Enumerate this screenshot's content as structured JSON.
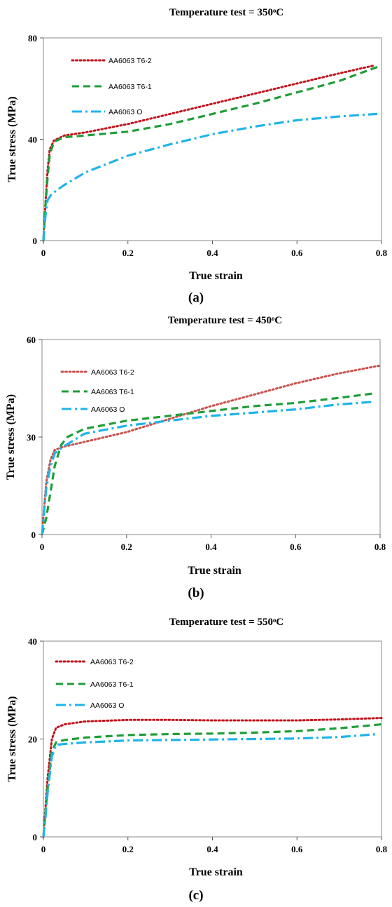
{
  "chart_data": [
    {
      "type": "line",
      "title": "Temperature test = 350ͦC",
      "xlabel": "True strain",
      "ylabel": "True stress (MPa)",
      "xlim": [
        0,
        0.8
      ],
      "ylim": [
        0,
        80
      ],
      "xticks": [
        "0",
        "0.2",
        "0.4",
        "0.6",
        "0.8"
      ],
      "yticks": [
        "0",
        "40",
        "80"
      ],
      "caption": "(a)",
      "legend_position": "top-left",
      "series": [
        {
          "name": "AA6063 T6-2",
          "color": "#c0141c",
          "dash": "dotted",
          "points": [
            [
              0,
              0
            ],
            [
              0.005,
              15
            ],
            [
              0.01,
              28
            ],
            [
              0.015,
              36
            ],
            [
              0.025,
              39.5
            ],
            [
              0.05,
              41.5
            ],
            [
              0.1,
              42.7
            ],
            [
              0.2,
              46
            ],
            [
              0.3,
              50
            ],
            [
              0.4,
              54
            ],
            [
              0.5,
              58
            ],
            [
              0.6,
              62
            ],
            [
              0.7,
              66
            ],
            [
              0.78,
              69
            ]
          ]
        },
        {
          "name": "AA6063 T6-1",
          "color": "#1f9e38",
          "dash": "dashed",
          "points": [
            [
              0,
              0
            ],
            [
              0.005,
              14
            ],
            [
              0.01,
              25
            ],
            [
              0.015,
              34
            ],
            [
              0.025,
              39
            ],
            [
              0.05,
              40.8
            ],
            [
              0.1,
              41.5
            ],
            [
              0.2,
              43
            ],
            [
              0.3,
              46
            ],
            [
              0.4,
              50
            ],
            [
              0.5,
              54
            ],
            [
              0.6,
              58.5
            ],
            [
              0.7,
              63
            ],
            [
              0.79,
              68.5
            ]
          ]
        },
        {
          "name": "AA6063 O",
          "color": "#1fb4e8",
          "dash": "dashdot",
          "points": [
            [
              0,
              0
            ],
            [
              0.005,
              10
            ],
            [
              0.01,
              16
            ],
            [
              0.02,
              18.5
            ],
            [
              0.05,
              22
            ],
            [
              0.1,
              27
            ],
            [
              0.2,
              33.5
            ],
            [
              0.3,
              38
            ],
            [
              0.4,
              42
            ],
            [
              0.5,
              45
            ],
            [
              0.6,
              47.5
            ],
            [
              0.7,
              49
            ],
            [
              0.79,
              50
            ]
          ]
        }
      ]
    },
    {
      "type": "line",
      "title": "Temperature test = 450ͦC",
      "xlabel": "True strain",
      "ylabel": "True stress (MPa)",
      "xlim": [
        0,
        0.8
      ],
      "ylim": [
        0,
        60
      ],
      "xticks": [
        "0",
        "0.2",
        "0.4",
        "0.6",
        "0.8"
      ],
      "yticks": [
        "0",
        "30",
        "60"
      ],
      "caption": "(b)",
      "legend_position": "top-left",
      "series": [
        {
          "name": "AA6063 T6-2",
          "color": "#c8504a",
          "dash": "dotted",
          "points": [
            [
              0,
              0
            ],
            [
              0.005,
              8
            ],
            [
              0.01,
              16
            ],
            [
              0.02,
              23
            ],
            [
              0.03,
              26
            ],
            [
              0.05,
              27
            ],
            [
              0.1,
              28.5
            ],
            [
              0.2,
              31.5
            ],
            [
              0.3,
              35.5
            ],
            [
              0.4,
              39.5
            ],
            [
              0.5,
              43
            ],
            [
              0.6,
              46.5
            ],
            [
              0.7,
              49.5
            ],
            [
              0.8,
              52
            ]
          ]
        },
        {
          "name": "AA6063 T6-1",
          "color": "#1f9e38",
          "dash": "dashed",
          "points": [
            [
              0,
              0
            ],
            [
              0.01,
              5
            ],
            [
              0.02,
              13
            ],
            [
              0.03,
              21
            ],
            [
              0.045,
              27.5
            ],
            [
              0.06,
              30
            ],
            [
              0.1,
              32.5
            ],
            [
              0.2,
              35
            ],
            [
              0.3,
              36.5
            ],
            [
              0.4,
              38
            ],
            [
              0.5,
              39.5
            ],
            [
              0.6,
              40.5
            ],
            [
              0.7,
              42
            ],
            [
              0.79,
              43.5
            ]
          ]
        },
        {
          "name": "AA6063 O",
          "color": "#1fb4e8",
          "dash": "dashdot",
          "points": [
            [
              0,
              0
            ],
            [
              0.005,
              7
            ],
            [
              0.01,
              14
            ],
            [
              0.02,
              21
            ],
            [
              0.03,
              25
            ],
            [
              0.05,
              27
            ],
            [
              0.1,
              31
            ],
            [
              0.2,
              33.5
            ],
            [
              0.3,
              35
            ],
            [
              0.4,
              36.5
            ],
            [
              0.5,
              37.5
            ],
            [
              0.6,
              38.5
            ],
            [
              0.7,
              40
            ],
            [
              0.78,
              40.8
            ]
          ]
        }
      ]
    },
    {
      "type": "line",
      "title": "Temperature test = 550ͦC",
      "xlabel": "True strain",
      "ylabel": "True stress (MPa)",
      "xlim": [
        0,
        0.8
      ],
      "ylim": [
        0,
        40
      ],
      "xticks": [
        "0",
        "0.2",
        "0.4",
        "0.6",
        "0.8"
      ],
      "yticks": [
        "0",
        "20",
        "40"
      ],
      "caption": "(c)",
      "legend_position": "top-left",
      "series": [
        {
          "name": "AA6063 T6-2",
          "color": "#c0141c",
          "dash": "dotted",
          "points": [
            [
              0,
              0
            ],
            [
              0.005,
              6
            ],
            [
              0.01,
              12
            ],
            [
              0.02,
              20
            ],
            [
              0.03,
              22.3
            ],
            [
              0.05,
              23
            ],
            [
              0.1,
              23.6
            ],
            [
              0.2,
              23.9
            ],
            [
              0.3,
              23.9
            ],
            [
              0.4,
              23.8
            ],
            [
              0.5,
              23.8
            ],
            [
              0.6,
              23.8
            ],
            [
              0.7,
              24
            ],
            [
              0.8,
              24.3
            ]
          ]
        },
        {
          "name": "AA6063 T6-1",
          "color": "#1f9e38",
          "dash": "dashed",
          "points": [
            [
              0,
              0
            ],
            [
              0.005,
              5
            ],
            [
              0.01,
              10
            ],
            [
              0.02,
              17.5
            ],
            [
              0.03,
              19.3
            ],
            [
              0.05,
              19.8
            ],
            [
              0.1,
              20.3
            ],
            [
              0.2,
              20.8
            ],
            [
              0.3,
              21
            ],
            [
              0.4,
              21.1
            ],
            [
              0.5,
              21.3
            ],
            [
              0.6,
              21.6
            ],
            [
              0.7,
              22.2
            ],
            [
              0.8,
              23
            ]
          ]
        },
        {
          "name": "AA6063 O",
          "color": "#1fb4e8",
          "dash": "dashdot",
          "points": [
            [
              0,
              0
            ],
            [
              0.005,
              4
            ],
            [
              0.01,
              9
            ],
            [
              0.02,
              16.5
            ],
            [
              0.03,
              18.8
            ],
            [
              0.05,
              19
            ],
            [
              0.1,
              19.3
            ],
            [
              0.2,
              19.7
            ],
            [
              0.3,
              19.8
            ],
            [
              0.4,
              19.9
            ],
            [
              0.5,
              20
            ],
            [
              0.6,
              20.1
            ],
            [
              0.7,
              20.4
            ],
            [
              0.79,
              21
            ]
          ]
        }
      ]
    }
  ]
}
